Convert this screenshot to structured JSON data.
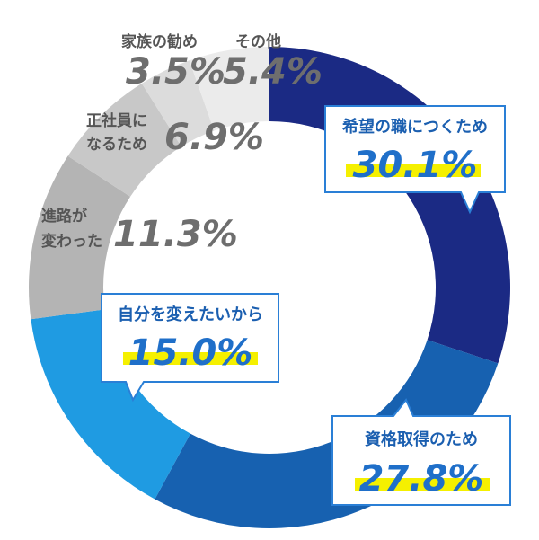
{
  "chart_data": {
    "type": "pie",
    "slices": [
      {
        "label": "希望の職につくため",
        "value": 30.1,
        "display": "30.1%",
        "color": "#1b2a84",
        "callout": true
      },
      {
        "label": "資格取得のため",
        "value": 27.8,
        "display": "27.8%",
        "color": "#1761b0",
        "callout": true
      },
      {
        "label": "自分を変えたいから",
        "value": 15.0,
        "display": "15.0%",
        "color": "#1f9be2",
        "callout": true
      },
      {
        "label_lines": [
          "進路が",
          "変わった"
        ],
        "value": 11.3,
        "display": "11.3%",
        "color": "#b4b4b4",
        "callout": false
      },
      {
        "label_lines": [
          "正社員に",
          "なるため"
        ],
        "value": 6.9,
        "display": "6.9%",
        "color": "#c8c8c8",
        "callout": false
      },
      {
        "label": "家族の勧め",
        "value": 3.5,
        "display": "3.5%",
        "color": "#dcdcdc",
        "callout": false
      },
      {
        "label": "その他",
        "value": 5.4,
        "display": "5.4%",
        "color": "#ebebeb",
        "callout": false
      }
    ],
    "highlight_color": "#f5f000",
    "callout_border_color": "#2a7fd6",
    "legend": "none"
  }
}
